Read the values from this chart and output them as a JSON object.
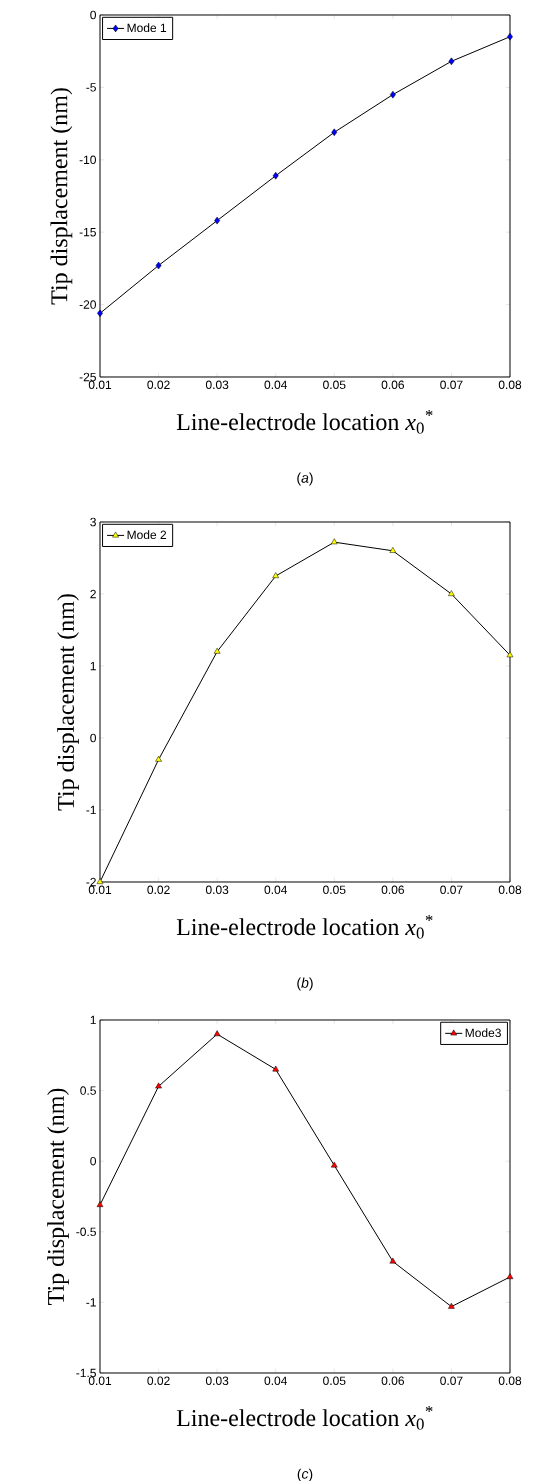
{
  "chart_data": [
    {
      "type": "line",
      "x": [
        0.01,
        0.02,
        0.03,
        0.04,
        0.05,
        0.06,
        0.07,
        0.08
      ],
      "series": [
        {
          "name": "Mode 1",
          "color": "#0000ff",
          "values": [
            -20.6,
            -17.3,
            -14.2,
            -11.1,
            -8.1,
            -5.5,
            -3.2,
            -1.5
          ]
        }
      ],
      "marker": "diamond",
      "legend": "top left",
      "xlim": [
        0.01,
        0.08
      ],
      "ylim": [
        -25,
        0
      ],
      "xticks": [
        0.01,
        0.02,
        0.03,
        0.04,
        0.05,
        0.06,
        0.07,
        0.08
      ],
      "yticks": [
        -25,
        -20,
        -15,
        -10,
        -5,
        0
      ],
      "xlabel": "Line-electrode location  *x*$_{0}$$^{*}$",
      "ylabel": "Tip displacement  (nm)",
      "annotations": [
        "(*a*)"
      ]
    },
    {
      "type": "line",
      "x": [
        0.01,
        0.02,
        0.03,
        0.04,
        0.05,
        0.06,
        0.07,
        0.08
      ],
      "series": [
        {
          "name": "Mode 2",
          "color": "#ffff00",
          "values": [
            -2.0,
            -0.3,
            1.2,
            2.25,
            2.72,
            2.6,
            2.0,
            1.15
          ]
        }
      ],
      "marker": "triangle",
      "legend": "top left",
      "xlim": [
        0.01,
        0.08
      ],
      "ylim": [
        -2,
        3
      ],
      "xticks": [
        0.01,
        0.02,
        0.03,
        0.04,
        0.05,
        0.06,
        0.07,
        0.08
      ],
      "yticks": [
        -2,
        -1,
        0,
        1,
        2,
        3
      ],
      "xlabel": "Line-electrode location  *x*$_{0}$$^{*}$",
      "ylabel": "Tip displacement  (nm)",
      "annotations": [
        "(*b*)"
      ]
    },
    {
      "type": "line",
      "x": [
        0.01,
        0.02,
        0.03,
        0.04,
        0.05,
        0.06,
        0.07,
        0.08
      ],
      "series": [
        {
          "name": "Mode3",
          "color": "#ff0000",
          "values": [
            -0.31,
            0.53,
            0.9,
            0.65,
            -0.03,
            -0.71,
            -1.03,
            -0.82
          ]
        }
      ],
      "marker": "triangle",
      "legend": "top right",
      "xlim": [
        0.01,
        0.08
      ],
      "ylim": [
        -1.5,
        1
      ],
      "xticks": [
        0.01,
        0.02,
        0.03,
        0.04,
        0.05,
        0.06,
        0.07,
        0.08
      ],
      "yticks": [
        -1.5,
        -1,
        -0.5,
        0,
        0.5,
        1
      ],
      "xlabel": "Line-electrode location  *x*$_{0}$$^{*}$",
      "ylabel": "Tip displacement  (nm)",
      "annotations": [
        "(*c*)"
      ]
    }
  ]
}
